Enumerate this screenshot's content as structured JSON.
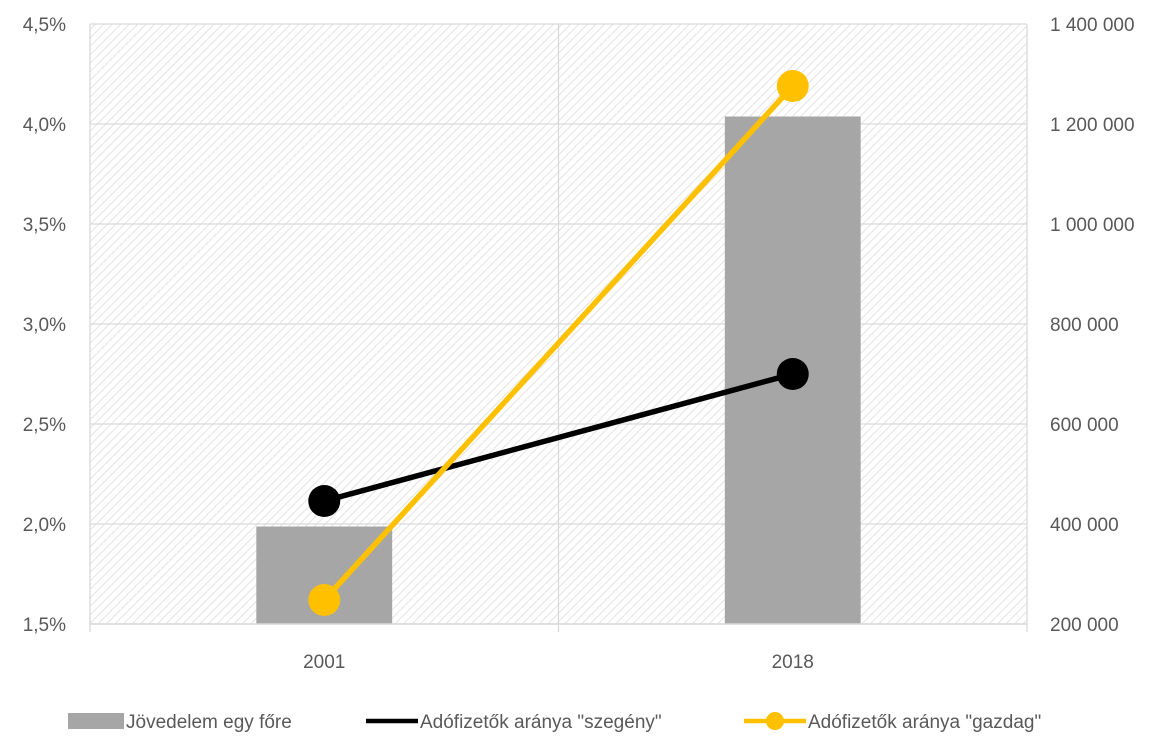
{
  "chart_data": {
    "type": "bar",
    "categories": [
      "2001",
      "2018"
    ],
    "series": [
      {
        "name": "Jövedelem egy főre",
        "kind": "bar",
        "axis": "right",
        "color": "#a6a6a6",
        "values": [
          395000,
          1215000
        ]
      },
      {
        "name": "Adófizetők aránya \"szegény\"",
        "kind": "line",
        "axis": "left",
        "color": "#000000",
        "values": [
          0.02115,
          0.0275
        ]
      },
      {
        "name": "Adófizetők aránya \"gazdag\"",
        "kind": "line",
        "axis": "left",
        "color": "#ffc000",
        "values": [
          0.0162,
          0.0419
        ]
      }
    ],
    "y_left": {
      "lim": [
        0.015,
        0.045
      ],
      "ticks": [
        "1,5%",
        "2,0%",
        "2,5%",
        "3,0%",
        "3,5%",
        "4,0%",
        "4,5%"
      ]
    },
    "y_right": {
      "lim": [
        200000,
        1400000
      ],
      "ticks": [
        "200 000",
        "400 000",
        "600 000",
        "800 000",
        "1 000 000",
        "1 200 000",
        "1 400 000"
      ]
    },
    "grid": true,
    "plot_background": "diagonal hatch",
    "legend_position": "bottom"
  }
}
